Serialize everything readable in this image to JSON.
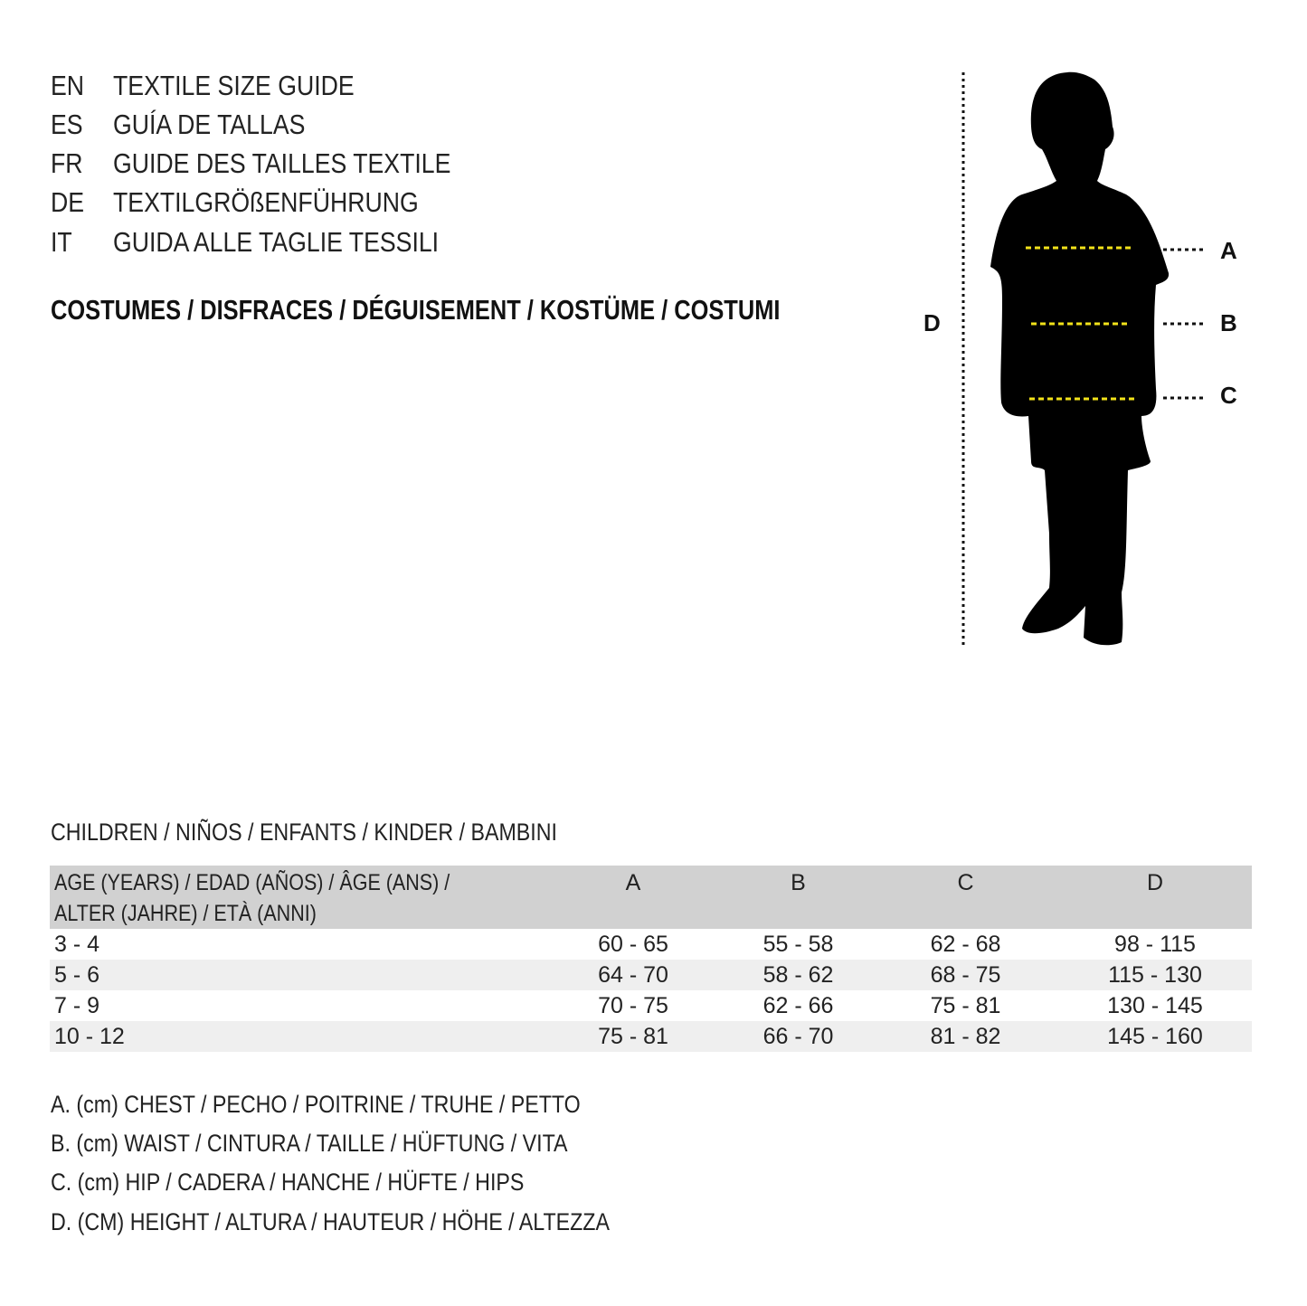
{
  "languages": [
    {
      "code": "EN",
      "title": "TEXTILE SIZE GUIDE"
    },
    {
      "code": "ES",
      "title": "GUÍA DE TALLAS"
    },
    {
      "code": "FR",
      "title": "GUIDE DES TAILLES TEXTILE"
    },
    {
      "code": "DE",
      "title": "TEXTILGRÖßENFÜHRUNG"
    },
    {
      "code": "IT",
      "title": "GUIDA ALLE TAGLIE TESSILI"
    }
  ],
  "category": "COSTUMES / DISFRACES / DÉGUISEMENT / KOSTÜME / COSTUMI",
  "figure": {
    "labels": {
      "A": "A",
      "B": "B",
      "C": "C",
      "D": "D"
    },
    "guide_color": "#f2e21a"
  },
  "table": {
    "caption": "CHILDREN / NIÑOS / ENFANTS / KINDER / BAMBINI",
    "headers": {
      "age_line1": "AGE (YEARS) / EDAD (AÑOS) / ÂGE (ANS) /",
      "age_line2": "ALTER (JAHRE) / ETÀ (ANNI)",
      "a": "A",
      "b": "B",
      "c": "C",
      "d": "D"
    },
    "rows": [
      {
        "age": "3 - 4",
        "a": "60 - 65",
        "b": "55 - 58",
        "c": "62 - 68",
        "d": "98 - 115"
      },
      {
        "age": "5 - 6",
        "a": "64 - 70",
        "b": "58 - 62",
        "c": "68 - 75",
        "d": "115 - 130"
      },
      {
        "age": "7 - 9",
        "a": "70 - 75",
        "b": "62 - 66",
        "c": "75 - 81",
        "d": "130 - 145"
      },
      {
        "age": "10 - 12",
        "a": "75 - 81",
        "b": "66 - 70",
        "c": "81 - 82",
        "d": "145 - 160"
      }
    ]
  },
  "legend": [
    "A. (cm) CHEST / PECHO / POITRINE / TRUHE / PETTO",
    "B. (cm) WAIST / CINTURA / TAILLE / HÜFTUNG / VITA",
    "C. (cm) HIP / CADERA / HANCHE / HÜFTE / HIPS",
    "D. (CM) HEIGHT / ALTURA / HAUTEUR / HÖHE / ALTEZZA"
  ]
}
